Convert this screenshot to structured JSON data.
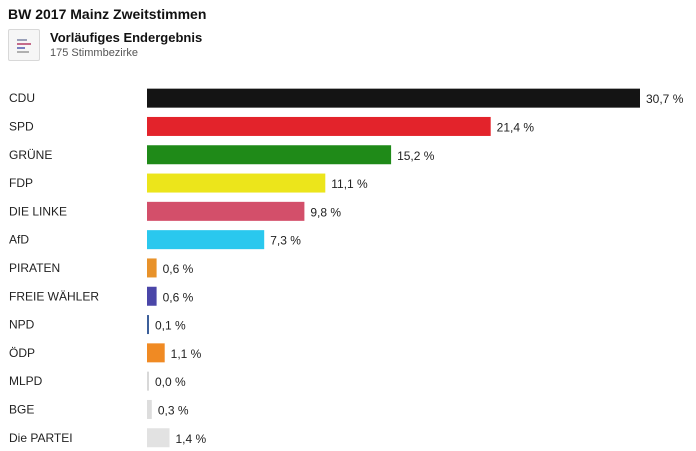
{
  "header": {
    "title": "BW 2017 Mainz Zweitstimmen",
    "subtitle": "Vorläufiges Endergebnis",
    "caption": "175 Stimmbezirke",
    "icon": "bar-chart-icon"
  },
  "chart_data": {
    "type": "bar",
    "orientation": "horizontal",
    "title": "BW 2017 Mainz Zweitstimmen",
    "xlim": [
      0,
      31
    ],
    "grid": false,
    "legend": "none",
    "categories": [
      "CDU",
      "SPD",
      "GRÜNE",
      "FDP",
      "DIE LINKE",
      "AfD",
      "PIRATEN",
      "FREIE WÄHLER",
      "NPD",
      "ÖDP",
      "MLPD",
      "BGE",
      "Die PARTEI"
    ],
    "values": [
      30.7,
      21.4,
      15.2,
      11.1,
      9.8,
      7.3,
      0.6,
      0.6,
      0.1,
      1.1,
      0.0,
      0.3,
      1.4
    ],
    "value_labels": [
      "30,7 %",
      "21,4 %",
      "15,2 %",
      "11,1 %",
      "9,8 %",
      "7,3 %",
      "0,6 %",
      "0,6 %",
      "0,1 %",
      "1,1 %",
      "0,0 %",
      "0,3 %",
      "1,4 %"
    ],
    "colors": [
      "#141414",
      "#e3232b",
      "#1f8a18",
      "#ece51b",
      "#d34f6a",
      "#2ac8ee",
      "#e8922a",
      "#4a46a8",
      "#3c5f9a",
      "#f08a23",
      "#d8d8d8",
      "#dddddd",
      "#e2e2e2"
    ]
  }
}
